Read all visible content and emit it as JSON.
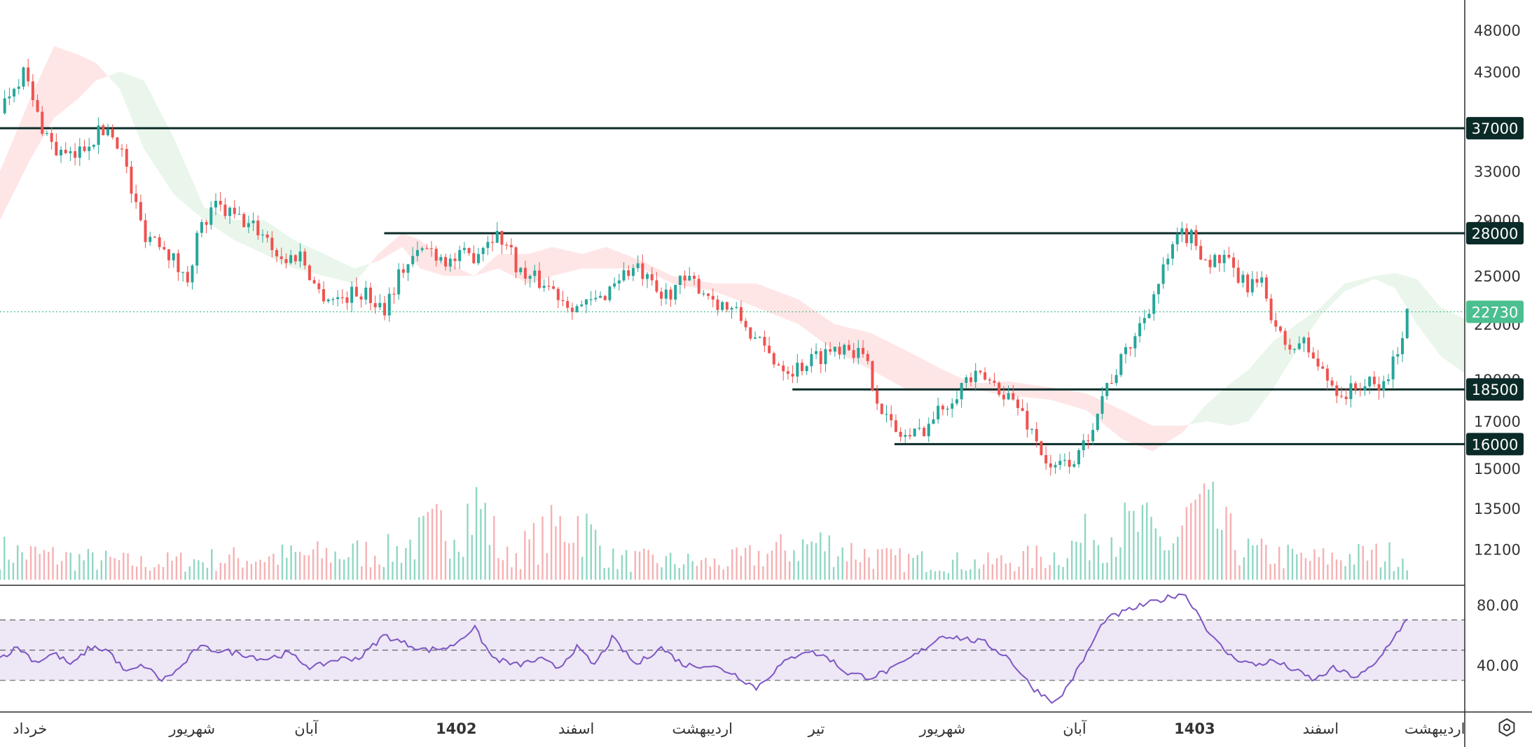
{
  "chart_data": {
    "type": "candlestick",
    "price_axis": {
      "scale": "log",
      "range": [
        11000,
        52000
      ],
      "tick_labels": [
        "48000",
        "43000",
        "37000",
        "33000",
        "29000",
        "28000",
        "25000",
        "22000",
        "22730",
        "19000",
        "18500",
        "17000",
        "16000",
        "15000",
        "13500",
        "12100"
      ],
      "ticks": [
        48000,
        43000,
        33000,
        29000,
        25000,
        22000,
        19000,
        17000,
        15000,
        13500,
        12100
      ]
    },
    "horizontal_levels": [
      {
        "label": "37000",
        "value": 37000,
        "color": "#0b2b28",
        "start_month": 0
      },
      {
        "label": "28000",
        "value": 28000,
        "color": "#0b2b28",
        "start_month": 3.2
      },
      {
        "label": "18500",
        "value": 18500,
        "color": "#0b2b28",
        "start_month": 6.6
      },
      {
        "label": "16000",
        "value": 16000,
        "color": "#0b2b28",
        "start_month": 7.45
      }
    ],
    "last_price": {
      "label": "22730",
      "value": 22730,
      "color": "#4bbf8f"
    },
    "time_axis": {
      "labels": [
        "خرداد",
        "شهریور",
        "آبان",
        "1402",
        "اسفند",
        "اردیبهشت",
        "تیر",
        "شهریور",
        "آبان",
        "1403",
        "اسفند",
        "اردیبهشت"
      ],
      "bold": [
        false,
        false,
        false,
        true,
        false,
        false,
        false,
        false,
        false,
        true,
        false,
        false
      ],
      "month_index": [
        0.25,
        1.6,
        2.55,
        3.8,
        4.8,
        5.85,
        6.8,
        7.85,
        8.95,
        9.95,
        11.0,
        11.95
      ],
      "range": [
        0,
        12.2
      ]
    },
    "price_path": [
      [
        0.0,
        38500
      ],
      [
        0.1,
        41500
      ],
      [
        0.2,
        43000
      ],
      [
        0.3,
        38500
      ],
      [
        0.45,
        35000
      ],
      [
        0.6,
        34000
      ],
      [
        0.75,
        36000
      ],
      [
        0.9,
        37000
      ],
      [
        1.0,
        35500
      ],
      [
        1.1,
        31000
      ],
      [
        1.2,
        28000
      ],
      [
        1.35,
        27500
      ],
      [
        1.45,
        26000
      ],
      [
        1.55,
        24500
      ],
      [
        1.65,
        28000
      ],
      [
        1.8,
        30000
      ],
      [
        2.0,
        29000
      ],
      [
        2.2,
        28000
      ],
      [
        2.35,
        26000
      ],
      [
        2.5,
        26500
      ],
      [
        2.65,
        24000
      ],
      [
        2.8,
        23500
      ],
      [
        3.0,
        24000
      ],
      [
        3.2,
        23000
      ],
      [
        3.35,
        25500
      ],
      [
        3.55,
        27000
      ],
      [
        3.75,
        26000
      ],
      [
        3.95,
        26500
      ],
      [
        4.1,
        28000
      ],
      [
        4.2,
        27500
      ],
      [
        4.35,
        25000
      ],
      [
        4.55,
        24500
      ],
      [
        4.7,
        23500
      ],
      [
        4.85,
        23000
      ],
      [
        5.0,
        23500
      ],
      [
        5.15,
        25000
      ],
      [
        5.3,
        25500
      ],
      [
        5.5,
        23500
      ],
      [
        5.65,
        24500
      ],
      [
        5.8,
        24500
      ],
      [
        5.95,
        23500
      ],
      [
        6.15,
        22500
      ],
      [
        6.3,
        21000
      ],
      [
        6.45,
        20000
      ],
      [
        6.6,
        19500
      ],
      [
        6.75,
        20000
      ],
      [
        6.9,
        20500
      ],
      [
        7.05,
        21000
      ],
      [
        7.2,
        20000
      ],
      [
        7.35,
        17500
      ],
      [
        7.45,
        16500
      ],
      [
        7.6,
        16300
      ],
      [
        7.75,
        17000
      ],
      [
        7.9,
        18000
      ],
      [
        8.05,
        19000
      ],
      [
        8.2,
        19000
      ],
      [
        8.35,
        18500
      ],
      [
        8.5,
        17500
      ],
      [
        8.65,
        16000
      ],
      [
        8.75,
        14800
      ],
      [
        8.85,
        15200
      ],
      [
        9.0,
        15500
      ],
      [
        9.1,
        17000
      ],
      [
        9.2,
        18500
      ],
      [
        9.35,
        20000
      ],
      [
        9.5,
        22000
      ],
      [
        9.65,
        24500
      ],
      [
        9.75,
        26500
      ],
      [
        9.85,
        28000
      ],
      [
        9.95,
        27500
      ],
      [
        10.05,
        26000
      ],
      [
        10.2,
        26000
      ],
      [
        10.35,
        24500
      ],
      [
        10.5,
        24500
      ],
      [
        10.6,
        22500
      ],
      [
        10.7,
        20500
      ],
      [
        10.85,
        21000
      ],
      [
        10.95,
        20000
      ],
      [
        11.05,
        19000
      ],
      [
        11.2,
        18200
      ],
      [
        11.35,
        18800
      ],
      [
        11.5,
        18500
      ],
      [
        11.62,
        20000
      ],
      [
        11.72,
        22730
      ]
    ],
    "volume_shape": [
      [
        0.0,
        0.35
      ],
      [
        0.7,
        0.25
      ],
      [
        1.2,
        0.2
      ],
      [
        1.8,
        0.25
      ],
      [
        2.6,
        0.3
      ],
      [
        3.3,
        0.35
      ],
      [
        4.0,
        0.9
      ],
      [
        4.2,
        0.25
      ],
      [
        4.8,
        0.75
      ],
      [
        5.1,
        0.25
      ],
      [
        6.0,
        0.2
      ],
      [
        6.8,
        0.45
      ],
      [
        7.4,
        0.25
      ],
      [
        8.2,
        0.2
      ],
      [
        8.8,
        0.3
      ],
      [
        9.1,
        0.55
      ],
      [
        9.5,
        0.65
      ],
      [
        9.75,
        0.4
      ],
      [
        9.95,
        0.85
      ],
      [
        10.1,
        0.75
      ],
      [
        10.35,
        0.35
      ],
      [
        10.9,
        0.25
      ],
      [
        11.4,
        0.3
      ],
      [
        11.72,
        0.3
      ]
    ],
    "cloud": [
      [
        0.0,
        29000,
        33000
      ],
      [
        0.25,
        34000,
        40000
      ],
      [
        0.45,
        38000,
        46000
      ],
      [
        0.65,
        40000,
        45000
      ],
      [
        0.8,
        42000,
        44000
      ],
      [
        1.0,
        43000,
        41000
      ],
      [
        1.2,
        42000,
        35000
      ],
      [
        1.45,
        36000,
        31000
      ],
      [
        1.7,
        30000,
        29000
      ],
      [
        1.95,
        29000,
        27500
      ],
      [
        2.2,
        29000,
        26500
      ],
      [
        2.45,
        27500,
        25500
      ],
      [
        2.7,
        26500,
        25000
      ],
      [
        2.95,
        25500,
        24500
      ],
      [
        3.15,
        26000,
        26500
      ],
      [
        3.35,
        27000,
        28000
      ],
      [
        3.5,
        25500,
        27500
      ],
      [
        3.7,
        25000,
        26000
      ],
      [
        3.95,
        25000,
        25000
      ],
      [
        4.15,
        25500,
        26500
      ],
      [
        4.4,
        24500,
        26500
      ],
      [
        4.6,
        25000,
        27000
      ],
      [
        4.85,
        25500,
        26500
      ],
      [
        5.05,
        25500,
        27000
      ],
      [
        5.35,
        25500,
        26000
      ],
      [
        5.6,
        24500,
        25000
      ],
      [
        5.95,
        24000,
        24500
      ],
      [
        6.3,
        23000,
        24500
      ],
      [
        6.65,
        22000,
        23500
      ],
      [
        6.95,
        20500,
        22000
      ],
      [
        7.25,
        19500,
        21500
      ],
      [
        7.55,
        18500,
        20500
      ],
      [
        7.85,
        18500,
        19500
      ],
      [
        8.1,
        18500,
        18800
      ],
      [
        8.4,
        18200,
        18900
      ],
      [
        8.75,
        18000,
        18600
      ],
      [
        9.05,
        17500,
        18300
      ],
      [
        9.35,
        16200,
        17500
      ],
      [
        9.6,
        15700,
        16800
      ],
      [
        9.85,
        16500,
        16800
      ],
      [
        10.05,
        17800,
        17000
      ],
      [
        10.25,
        18800,
        16800
      ],
      [
        10.4,
        19500,
        17000
      ],
      [
        10.6,
        21000,
        18500
      ],
      [
        10.8,
        22000,
        20500
      ],
      [
        11.0,
        23000,
        22500
      ],
      [
        11.2,
        24500,
        24000
      ],
      [
        11.45,
        25000,
        24800
      ],
      [
        11.62,
        25200,
        24200
      ],
      [
        11.8,
        24800,
        22000
      ],
      [
        12.0,
        23000,
        20200
      ],
      [
        12.2,
        22300,
        19300
      ]
    ],
    "rsi": {
      "levels": [
        30,
        50,
        70
      ],
      "band": [
        30,
        70
      ],
      "scale": [
        10,
        92
      ],
      "tick_labels": [
        "80.00",
        "40.00"
      ],
      "ticks": [
        80,
        40
      ],
      "line_color": "#7e57c2",
      "band_color": "#ede7f6",
      "path": [
        [
          0.0,
          45
        ],
        [
          0.15,
          52
        ],
        [
          0.3,
          42
        ],
        [
          0.45,
          48
        ],
        [
          0.6,
          40
        ],
        [
          0.75,
          52
        ],
        [
          0.9,
          50
        ],
        [
          1.05,
          35
        ],
        [
          1.2,
          40
        ],
        [
          1.35,
          30
        ],
        [
          1.5,
          38
        ],
        [
          1.65,
          52
        ],
        [
          1.8,
          50
        ],
        [
          2.0,
          48
        ],
        [
          2.2,
          44
        ],
        [
          2.4,
          48
        ],
        [
          2.6,
          38
        ],
        [
          2.8,
          44
        ],
        [
          3.0,
          45
        ],
        [
          3.2,
          60
        ],
        [
          3.35,
          55
        ],
        [
          3.55,
          50
        ],
        [
          3.75,
          52
        ],
        [
          3.95,
          65
        ],
        [
          4.1,
          45
        ],
        [
          4.3,
          40
        ],
        [
          4.5,
          44
        ],
        [
          4.65,
          38
        ],
        [
          4.8,
          52
        ],
        [
          4.95,
          40
        ],
        [
          5.1,
          58
        ],
        [
          5.3,
          40
        ],
        [
          5.5,
          52
        ],
        [
          5.7,
          40
        ],
        [
          5.9,
          40
        ],
        [
          6.1,
          35
        ],
        [
          6.3,
          25
        ],
        [
          6.5,
          40
        ],
        [
          6.7,
          50
        ],
        [
          6.9,
          45
        ],
        [
          7.05,
          35
        ],
        [
          7.25,
          32
        ],
        [
          7.45,
          38
        ],
        [
          7.65,
          48
        ],
        [
          7.85,
          60
        ],
        [
          8.0,
          58
        ],
        [
          8.2,
          55
        ],
        [
          8.4,
          45
        ],
        [
          8.6,
          25
        ],
        [
          8.8,
          15
        ],
        [
          9.0,
          40
        ],
        [
          9.2,
          70
        ],
        [
          9.45,
          78
        ],
        [
          9.7,
          84
        ],
        [
          9.85,
          88
        ],
        [
          9.95,
          78
        ],
        [
          10.1,
          58
        ],
        [
          10.25,
          46
        ],
        [
          10.45,
          40
        ],
        [
          10.6,
          43
        ],
        [
          10.75,
          38
        ],
        [
          10.95,
          30
        ],
        [
          11.1,
          38
        ],
        [
          11.3,
          32
        ],
        [
          11.45,
          40
        ],
        [
          11.6,
          58
        ],
        [
          11.72,
          70
        ]
      ]
    },
    "colors": {
      "up": "#26a69a",
      "down": "#ef5350",
      "cloud_green": "#e8f5e9",
      "cloud_red": "#ffe3e3"
    }
  },
  "ui": {
    "settings_icon": "settings-hexagon-icon"
  }
}
